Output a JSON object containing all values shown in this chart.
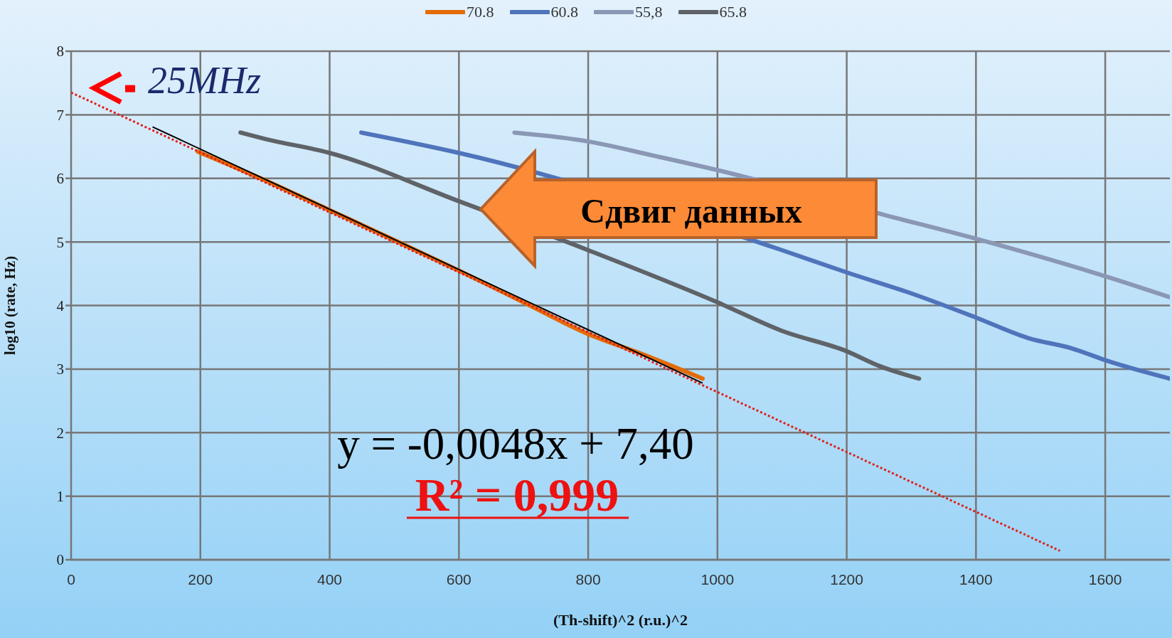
{
  "chart_data": {
    "type": "line",
    "xlabel": "(Th-shift)^2 (r.u.)^2",
    "ylabel": "log10 (rate, Hz)",
    "xlim": [
      0,
      1700
    ],
    "xticks": [
      0,
      200,
      400,
      600,
      800,
      1000,
      1200,
      1400,
      1600
    ],
    "ylim": [
      0,
      8
    ],
    "yticks": [
      0,
      1,
      2,
      3,
      4,
      5,
      6,
      7,
      8
    ],
    "grid": true,
    "legend": "top",
    "marker": "none",
    "series": [
      {
        "name": "70.8",
        "color": "#e36c09",
        "x": [
          196,
          300,
          400,
          500,
          600,
          700,
          800,
          880,
          977
        ],
        "values": [
          6.42,
          5.97,
          5.5,
          5.03,
          4.55,
          4.05,
          3.55,
          3.25,
          2.85
        ]
      },
      {
        "name": "60.8",
        "color": "#4f74bb",
        "x": [
          449,
          600,
          1100,
          1200,
          1300,
          1400,
          1480,
          1550,
          1600,
          1700
        ],
        "values": [
          6.72,
          6.4,
          4.87,
          4.52,
          4.19,
          3.81,
          3.49,
          3.32,
          3.14,
          2.85
        ]
      },
      {
        "name": "55,8",
        "color": "#8a97b5",
        "x": [
          686,
          800,
          900,
          1000,
          1260,
          1400,
          1600,
          1700
        ],
        "values": [
          6.72,
          6.58,
          6.36,
          6.13,
          5.42,
          5.05,
          4.46,
          4.13
        ]
      },
      {
        "name": "65.8",
        "color": "#5f6368",
        "x": [
          262,
          300,
          400,
          600,
          800,
          1000,
          1100,
          1200,
          1250,
          1312
        ],
        "values": [
          6.72,
          6.62,
          6.4,
          5.64,
          4.87,
          4.05,
          3.6,
          3.28,
          3.05,
          2.85
        ]
      },
      {
        "type": "line",
        "color": "#000000",
        "x": [
          126,
          977
        ],
        "values": [
          6.81,
          2.78
        ]
      },
      {
        "type": "line",
        "color": "#e0201a",
        "line_style": "dotted",
        "x": [
          0,
          1530
        ],
        "values": [
          7.35,
          0.14
        ]
      }
    ],
    "annotations": [
      {
        "text": "25MHz",
        "x": 0,
        "y": 7.4
      },
      "y = -0,0048x + 7,40",
      "R² = 0,999",
      "Сдвиг данных"
    ]
  }
}
